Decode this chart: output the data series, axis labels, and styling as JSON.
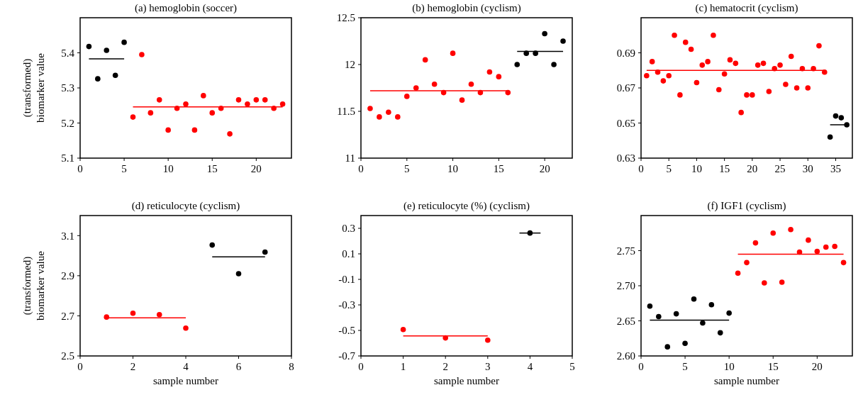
{
  "chart_data": [
    {
      "type": "scatter",
      "title": "(a) hemoglobin (soccer)",
      "ylabel": "(transformed) biomarker value",
      "xlim": [
        0,
        24
      ],
      "xticks": [
        0,
        5,
        10,
        15,
        20
      ],
      "ylim": [
        5.1,
        5.5
      ],
      "yticks": [
        5.1,
        5.2,
        5.3,
        5.4
      ],
      "series": [
        {
          "marker": "circle",
          "color": "#000000",
          "x": [
            1,
            2,
            3,
            4,
            5
          ],
          "values": [
            5.418,
            5.326,
            5.407,
            5.336,
            5.43
          ]
        },
        {
          "type": "line",
          "marker": "none",
          "color": "#000000",
          "x": [
            1,
            5
          ],
          "values": [
            5.383,
            5.383
          ]
        },
        {
          "marker": "circle",
          "color": "#ff0000",
          "x": [
            6,
            7,
            8,
            9,
            10,
            11,
            12,
            13,
            14,
            15,
            16,
            17,
            18,
            19,
            20,
            21,
            22,
            23
          ],
          "values": [
            5.217,
            5.395,
            5.229,
            5.266,
            5.18,
            5.242,
            5.254,
            5.18,
            5.278,
            5.229,
            5.242,
            5.169,
            5.266,
            5.254,
            5.266,
            5.266,
            5.242,
            5.254
          ]
        },
        {
          "type": "line",
          "marker": "none",
          "color": "#ff0000",
          "x": [
            6,
            23
          ],
          "values": [
            5.246,
            5.246
          ]
        }
      ]
    },
    {
      "type": "scatter",
      "title": "(b) hemoglobin (cyclism)",
      "xlim": [
        0,
        23
      ],
      "xticks": [
        0,
        5,
        10,
        15,
        20
      ],
      "ylim": [
        11,
        12.5
      ],
      "yticks": [
        11,
        11.5,
        12,
        12.5
      ],
      "series": [
        {
          "marker": "circle",
          "color": "#ff0000",
          "x": [
            1,
            2,
            3,
            4,
            5,
            6,
            7,
            8,
            9,
            10,
            11,
            12,
            13,
            14,
            15,
            16
          ],
          "values": [
            11.53,
            11.44,
            11.49,
            11.44,
            11.66,
            11.75,
            12.05,
            11.79,
            11.7,
            12.12,
            11.62,
            11.79,
            11.7,
            11.92,
            11.87,
            11.7
          ]
        },
        {
          "type": "line",
          "marker": "none",
          "color": "#ff0000",
          "x": [
            1,
            16
          ],
          "values": [
            11.72,
            11.72
          ]
        },
        {
          "marker": "circle",
          "color": "#000000",
          "x": [
            17,
            18,
            19,
            20,
            21,
            22
          ],
          "values": [
            12.0,
            12.12,
            12.12,
            12.33,
            12.0,
            12.25
          ]
        },
        {
          "type": "line",
          "marker": "none",
          "color": "#000000",
          "x": [
            17,
            22
          ],
          "values": [
            12.14,
            12.14
          ]
        }
      ]
    },
    {
      "type": "scatter",
      "title": "(c) hematocrit (cyclism)",
      "xlim": [
        0,
        38
      ],
      "xticks": [
        0,
        5,
        10,
        15,
        20,
        25,
        30,
        35
      ],
      "ylim": [
        0.63,
        0.71
      ],
      "yticks": [
        0.63,
        0.65,
        0.67,
        0.69
      ],
      "series": [
        {
          "marker": "circle",
          "color": "#ff0000",
          "x": [
            1,
            2,
            3,
            4,
            5,
            6,
            7,
            8,
            9,
            10,
            11,
            12,
            13,
            14,
            15,
            16,
            17,
            18,
            19,
            20,
            21,
            22,
            23,
            24,
            25,
            26,
            27,
            28,
            29,
            30,
            31,
            32,
            33
          ],
          "values": [
            0.677,
            0.685,
            0.679,
            0.674,
            0.677,
            0.7,
            0.666,
            0.696,
            0.692,
            0.673,
            0.683,
            0.685,
            0.7,
            0.669,
            0.678,
            0.686,
            0.684,
            0.656,
            0.666,
            0.666,
            0.683,
            0.684,
            0.668,
            0.681,
            0.683,
            0.672,
            0.688,
            0.67,
            0.681,
            0.67,
            0.681,
            0.694,
            0.679
          ]
        },
        {
          "type": "line",
          "marker": "none",
          "color": "#ff0000",
          "x": [
            1,
            33
          ],
          "values": [
            0.68,
            0.68
          ]
        },
        {
          "marker": "circle",
          "color": "#000000",
          "x": [
            34,
            35,
            36,
            37
          ],
          "values": [
            0.642,
            0.654,
            0.653,
            0.649
          ]
        },
        {
          "type": "line",
          "marker": "none",
          "color": "#000000",
          "x": [
            34,
            37
          ],
          "values": [
            0.649,
            0.649
          ]
        }
      ]
    },
    {
      "type": "scatter",
      "title": "(d) reticulocyte (cyclism)",
      "xlabel": "sample number",
      "ylabel": "(transformed) biomarker value",
      "xlim": [
        0,
        8
      ],
      "xticks": [
        0,
        2,
        4,
        6,
        8
      ],
      "ylim": [
        2.5,
        3.2
      ],
      "yticks": [
        2.5,
        2.7,
        2.9,
        3.1
      ],
      "series": [
        {
          "marker": "circle",
          "color": "#ff0000",
          "x": [
            1,
            2,
            3,
            4
          ],
          "values": [
            2.694,
            2.713,
            2.706,
            2.639
          ]
        },
        {
          "type": "line",
          "marker": "none",
          "color": "#ff0000",
          "x": [
            1,
            4
          ],
          "values": [
            2.69,
            2.69
          ]
        },
        {
          "marker": "circle",
          "color": "#000000",
          "x": [
            5,
            6,
            7
          ],
          "values": [
            3.053,
            2.91,
            3.018
          ]
        },
        {
          "type": "line",
          "marker": "none",
          "color": "#000000",
          "x": [
            5,
            7
          ],
          "values": [
            2.994,
            2.994
          ]
        }
      ]
    },
    {
      "type": "scatter",
      "title": "(e) reticulocyte (%) (cyclism)",
      "xlabel": "sample number",
      "xlim": [
        0,
        5
      ],
      "xticks": [
        0,
        1,
        2,
        3,
        4,
        5
      ],
      "ylim": [
        -0.7,
        0.4
      ],
      "yticks": [
        -0.7,
        -0.5,
        -0.3,
        -0.1,
        0.1,
        0.3
      ],
      "series": [
        {
          "marker": "circle",
          "color": "#ff0000",
          "x": [
            1,
            2,
            3
          ],
          "values": [
            -0.493,
            -0.559,
            -0.576
          ]
        },
        {
          "type": "line",
          "marker": "none",
          "color": "#ff0000",
          "x": [
            1,
            3
          ],
          "values": [
            -0.543,
            -0.543
          ]
        },
        {
          "marker": "circle",
          "color": "#000000",
          "x": [
            4
          ],
          "values": [
            0.263
          ]
        },
        {
          "type": "line",
          "marker": "none",
          "color": "#000000",
          "x": [
            3.75,
            4.25
          ],
          "values": [
            0.263,
            0.263
          ]
        }
      ]
    },
    {
      "type": "scatter",
      "title": "(f) IGF1 (cyclism)",
      "xlabel": "sample number",
      "xlim": [
        0,
        24
      ],
      "xticks": [
        0,
        5,
        10,
        15,
        20
      ],
      "ylim": [
        2.6,
        2.8
      ],
      "yticks": [
        {
          "value": 2.6,
          "label": "2.60"
        },
        {
          "value": 2.65,
          "label": "2.65"
        },
        {
          "value": 2.7,
          "label": "2.70"
        },
        {
          "value": 2.75,
          "label": "2.75"
        }
      ],
      "series": [
        {
          "marker": "circle",
          "color": "#000000",
          "x": [
            1,
            2,
            3,
            4,
            5,
            6,
            7,
            8,
            9,
            10
          ],
          "values": [
            2.671,
            2.656,
            2.613,
            2.66,
            2.618,
            2.681,
            2.647,
            2.673,
            2.633,
            2.661
          ]
        },
        {
          "type": "line",
          "marker": "none",
          "color": "#000000",
          "x": [
            1,
            10
          ],
          "values": [
            2.651,
            2.651
          ]
        },
        {
          "marker": "circle",
          "color": "#ff0000",
          "x": [
            11,
            12,
            13,
            14,
            15,
            16,
            17,
            18,
            19,
            20,
            21,
            22,
            23
          ],
          "values": [
            2.718,
            2.733,
            2.761,
            2.704,
            2.775,
            2.705,
            2.78,
            2.748,
            2.765,
            2.749,
            2.755,
            2.756,
            2.733
          ]
        },
        {
          "type": "line",
          "marker": "none",
          "color": "#ff0000",
          "x": [
            11,
            23
          ],
          "values": [
            2.745,
            2.745
          ]
        }
      ]
    }
  ]
}
